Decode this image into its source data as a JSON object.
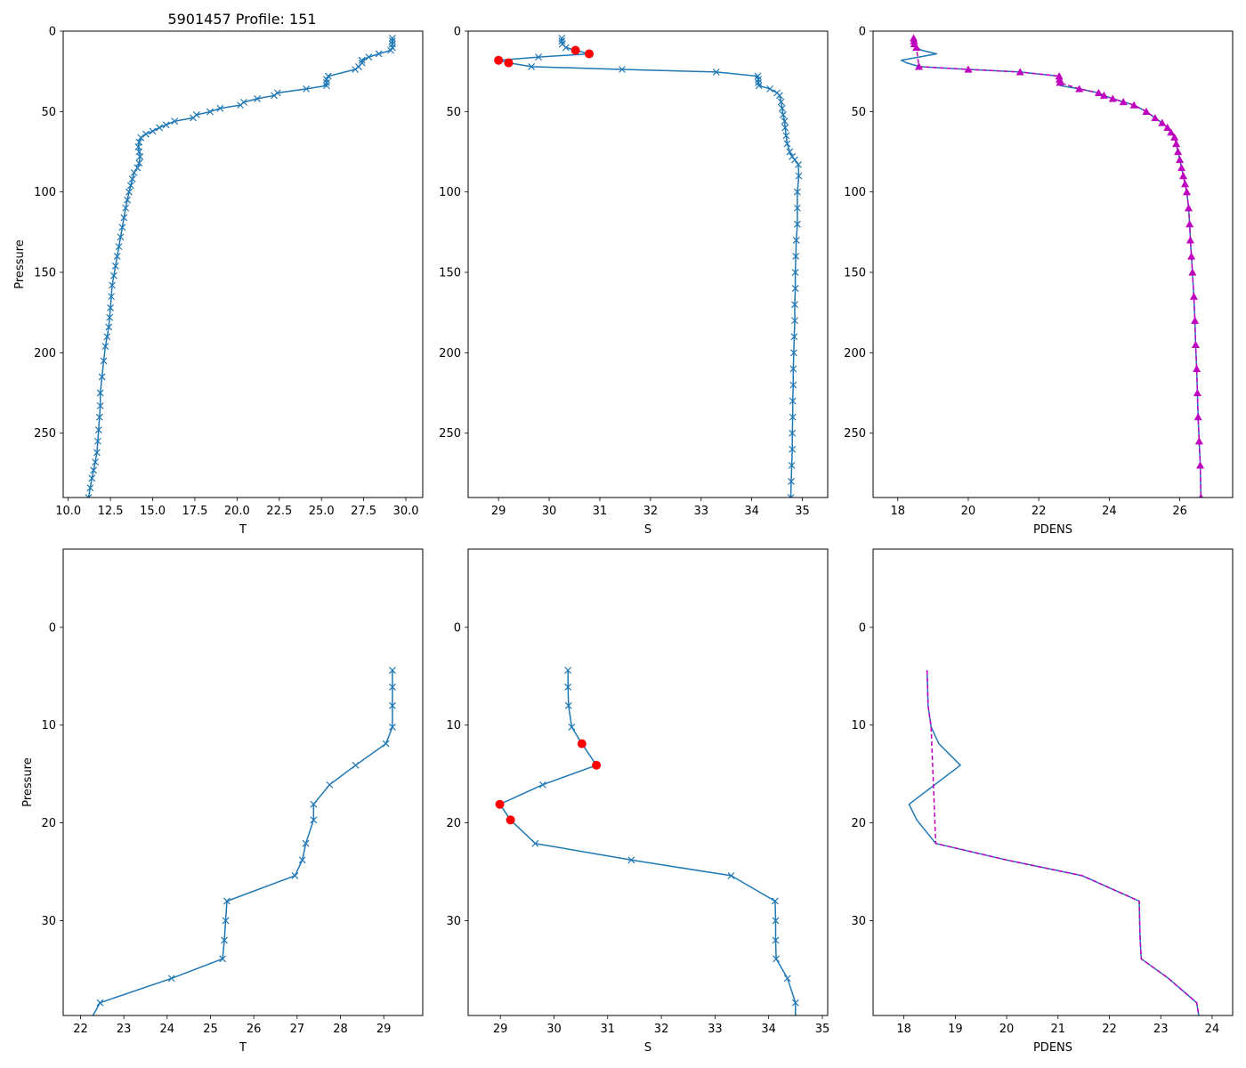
{
  "figure_title": "5901457 Profile: 151",
  "colors": {
    "line": "#1f77b4",
    "flag": "#ff0000",
    "dens": "#bf00bf",
    "axis": "#000000"
  },
  "chart_data": [
    {
      "id": "top-temperature",
      "type": "line",
      "xlabel": "T",
      "ylabel": "Pressure",
      "xlim": [
        9.7,
        31.0
      ],
      "ylim": [
        290,
        0
      ],
      "y_inverted": true,
      "xticks": [
        10.0,
        12.5,
        15.0,
        17.5,
        20.0,
        22.5,
        25.0,
        27.5,
        30.0
      ],
      "xtick_labels": [
        "10.0",
        "12.5",
        "15.0",
        "17.5",
        "20.0",
        "22.5",
        "25.0",
        "27.5",
        "30.0"
      ],
      "yticks": [
        0,
        50,
        100,
        150,
        200,
        250
      ],
      "ytick_labels": [
        "0",
        "50",
        "100",
        "150",
        "200",
        "250"
      ],
      "marker": "x",
      "series": [
        {
          "name": "T",
          "x": [
            29.2,
            29.2,
            29.2,
            29.2,
            29.1,
            28.4,
            27.8,
            27.4,
            27.4,
            27.2,
            27.0,
            25.4,
            25.3,
            25.3,
            25.3,
            24.1,
            22.4,
            22.2,
            21.2,
            20.4,
            20.2,
            19.0,
            18.4,
            17.6,
            17.4,
            16.3,
            15.8,
            15.4,
            15.0,
            14.6,
            14.3,
            14.2,
            14.15,
            14.2,
            14.25,
            14.2,
            14.1,
            13.9,
            13.8,
            13.7,
            13.6,
            13.5,
            13.4,
            13.3,
            13.2,
            13.1,
            13.0,
            12.9,
            12.8,
            12.7,
            12.6,
            12.55,
            12.5,
            12.45,
            12.4,
            12.3,
            12.2,
            12.1,
            12.0,
            11.9,
            11.9,
            11.85,
            11.8,
            11.75,
            11.7,
            11.6,
            11.5,
            11.4,
            11.3,
            11.2
          ],
          "y": [
            4.4,
            6.1,
            8.0,
            10.2,
            11.9,
            14.1,
            16.1,
            18.1,
            19.7,
            22.1,
            23.8,
            28.0,
            30.0,
            32.0,
            33.9,
            35.9,
            38.4,
            40.0,
            42.0,
            44.2,
            46.0,
            48.0,
            50.1,
            52.0,
            53.9,
            56.0,
            58.3,
            60.0,
            62.2,
            64.0,
            66.2,
            69.0,
            72.0,
            75.0,
            78.0,
            82.0,
            85.0,
            88.0,
            92.0,
            96.0,
            100.0,
            105.0,
            110.0,
            116.0,
            122.0,
            128.0,
            134.0,
            140.0,
            146.0,
            152.0,
            158.0,
            165.0,
            172.0,
            178.0,
            184.0,
            190.0,
            196.0,
            205.0,
            215.0,
            225.0,
            233.0,
            240.0,
            248.0,
            255.0,
            262.0,
            268.0,
            273.0,
            278.0,
            284.0,
            290.0
          ]
        }
      ]
    },
    {
      "id": "top-salinity",
      "type": "line",
      "xlabel": "S",
      "ylabel": "",
      "xlim": [
        28.4,
        35.5
      ],
      "ylim": [
        290,
        0
      ],
      "y_inverted": true,
      "xticks": [
        29,
        30,
        31,
        32,
        33,
        34,
        35
      ],
      "xtick_labels": [
        "29",
        "30",
        "31",
        "32",
        "33",
        "34",
        "35"
      ],
      "yticks": [
        0,
        50,
        100,
        150,
        200,
        250
      ],
      "ytick_labels": [
        "0",
        "50",
        "100",
        "150",
        "200",
        "250"
      ],
      "marker": "x",
      "series": [
        {
          "name": "S",
          "x": [
            30.25,
            30.25,
            30.26,
            30.33,
            30.52,
            30.79,
            29.79,
            29.0,
            29.2,
            29.65,
            31.44,
            33.3,
            34.12,
            34.13,
            34.13,
            34.14,
            34.36,
            34.5,
            34.55,
            34.58,
            34.6,
            34.62,
            34.65,
            34.66,
            34.68,
            34.7,
            34.75,
            34.8,
            34.85,
            34.92,
            34.93,
            34.9,
            34.9,
            34.9,
            34.88,
            34.87,
            34.86,
            34.86,
            34.85,
            34.85,
            34.84,
            34.83,
            34.82,
            34.82,
            34.81,
            34.81,
            34.8,
            34.8,
            34.79,
            34.78,
            34.77
          ],
          "y": [
            4.4,
            6.1,
            8.0,
            10.2,
            11.9,
            14.1,
            16.1,
            18.1,
            19.7,
            22.1,
            23.8,
            25.4,
            28.0,
            30.0,
            32.0,
            33.9,
            35.9,
            38.4,
            40.0,
            44.0,
            48.0,
            52.0,
            56.0,
            60.0,
            65.0,
            70.0,
            75.0,
            78.0,
            80.0,
            83.0,
            90.0,
            100.0,
            110.0,
            120.0,
            130.0,
            140.0,
            150.0,
            160.0,
            170.0,
            180.0,
            190.0,
            200.0,
            210.0,
            220.0,
            230.0,
            240.0,
            250.0,
            260.0,
            270.0,
            280.0,
            290.0
          ]
        }
      ],
      "flagged": {
        "x": [
          30.52,
          30.79,
          29.0,
          29.2
        ],
        "y": [
          11.9,
          14.1,
          18.1,
          19.7
        ]
      }
    },
    {
      "id": "top-density",
      "type": "line",
      "xlabel": "PDENS",
      "ylabel": "",
      "xlim": [
        17.3,
        27.5
      ],
      "ylim": [
        290,
        0
      ],
      "y_inverted": true,
      "xticks": [
        18,
        20,
        22,
        24,
        26
      ],
      "xtick_labels": [
        "18",
        "20",
        "22",
        "24",
        "26"
      ],
      "yticks": [
        0,
        50,
        100,
        150,
        200,
        250
      ],
      "ytick_labels": [
        "0",
        "50",
        "100",
        "150",
        "200",
        "250"
      ],
      "series": [
        {
          "name": "PDENS",
          "x": [
            18.45,
            18.46,
            18.47,
            18.53,
            18.68,
            19.1,
            18.6,
            18.1,
            18.25,
            18.62,
            20.0,
            21.47,
            22.58,
            22.59,
            22.6,
            22.62,
            23.15,
            23.7,
            23.85,
            24.1,
            24.4,
            24.7,
            25.05,
            25.3,
            25.5,
            25.65,
            25.75,
            25.85,
            25.9,
            25.95,
            26.0,
            26.05,
            26.1,
            26.15,
            26.2,
            26.25,
            26.28,
            26.3,
            26.33,
            26.36,
            26.4,
            26.43,
            26.45,
            26.48,
            26.5,
            26.52,
            26.55,
            26.58,
            26.6
          ],
          "y": [
            4.4,
            6.1,
            8.0,
            10.2,
            11.9,
            14.1,
            16.1,
            18.1,
            19.7,
            22.1,
            23.8,
            25.4,
            28.0,
            30.0,
            32.0,
            33.9,
            35.9,
            38.4,
            40.0,
            42.0,
            44.0,
            46.0,
            50.0,
            54.0,
            57.0,
            60.0,
            63.0,
            66.0,
            70.0,
            75.0,
            80.0,
            85.0,
            90.0,
            95.0,
            100.0,
            110.0,
            120.0,
            130.0,
            140.0,
            150.0,
            165.0,
            180.0,
            195.0,
            210.0,
            225.0,
            240.0,
            255.0,
            270.0,
            290.0
          ]
        }
      ],
      "dashed_overlay": true,
      "markers_triangle": {
        "x": [
          18.45,
          18.46,
          18.47,
          18.53,
          18.6,
          20.0,
          21.47,
          22.58,
          22.59,
          22.6,
          23.15,
          23.7,
          23.85,
          24.1,
          24.4,
          24.7,
          25.05,
          25.3,
          25.5,
          25.65,
          25.75,
          25.85,
          25.9,
          25.95,
          26.0,
          26.05,
          26.1,
          26.15,
          26.2,
          26.25,
          26.28,
          26.3,
          26.33,
          26.36,
          26.4,
          26.43,
          26.45,
          26.48,
          26.5,
          26.52,
          26.55,
          26.58,
          26.6
        ],
        "y": [
          4.4,
          6.1,
          8.0,
          10.2,
          22.1,
          23.8,
          25.4,
          28.0,
          30.0,
          32.0,
          35.9,
          38.4,
          40.0,
          42.0,
          44.0,
          46.0,
          50.0,
          54.0,
          57.0,
          60.0,
          63.0,
          66.0,
          70.0,
          75.0,
          80.0,
          85.0,
          90.0,
          95.0,
          100.0,
          110.0,
          120.0,
          130.0,
          140.0,
          150.0,
          165.0,
          180.0,
          195.0,
          210.0,
          225.0,
          240.0,
          255.0,
          270.0,
          290.0
        ]
      }
    },
    {
      "id": "bottom-temperature",
      "type": "line",
      "xlabel": "T",
      "ylabel": "Pressure",
      "xlim": [
        21.6,
        29.9
      ],
      "ylim": [
        39.7,
        -8
      ],
      "y_inverted": true,
      "xticks": [
        22,
        23,
        24,
        25,
        26,
        27,
        28,
        29
      ],
      "xtick_labels": [
        "22",
        "23",
        "24",
        "25",
        "26",
        "27",
        "28",
        "29"
      ],
      "yticks": [
        0,
        10,
        20,
        30
      ],
      "ytick_labels": [
        "0",
        "10",
        "20",
        "30"
      ],
      "marker": "x",
      "series": [
        {
          "name": "T",
          "x": [
            29.2,
            29.2,
            29.2,
            29.2,
            29.05,
            28.35,
            27.75,
            27.38,
            27.38,
            27.2,
            27.12,
            26.95,
            25.38,
            25.35,
            25.32,
            25.28,
            24.1,
            22.45,
            22.25
          ],
          "y": [
            4.4,
            6.1,
            8.0,
            10.2,
            11.9,
            14.1,
            16.1,
            18.1,
            19.7,
            22.1,
            23.8,
            25.4,
            28.0,
            30.0,
            32.0,
            33.9,
            35.9,
            38.4,
            40.0
          ]
        }
      ]
    },
    {
      "id": "bottom-salinity",
      "type": "line",
      "xlabel": "S",
      "ylabel": "",
      "xlim": [
        28.4,
        35.1
      ],
      "ylim": [
        39.7,
        -8
      ],
      "y_inverted": true,
      "xticks": [
        29,
        30,
        31,
        32,
        33,
        34,
        35
      ],
      "xtick_labels": [
        "29",
        "30",
        "31",
        "32",
        "33",
        "34",
        "35"
      ],
      "yticks": [
        0,
        10,
        20,
        30
      ],
      "ytick_labels": [
        "0",
        "10",
        "20",
        "30"
      ],
      "marker": "x",
      "series": [
        {
          "name": "S",
          "x": [
            30.26,
            30.26,
            30.27,
            30.33,
            30.52,
            30.79,
            29.79,
            28.99,
            29.19,
            29.65,
            31.44,
            33.3,
            34.12,
            34.13,
            34.13,
            34.14,
            34.35,
            34.5,
            34.5
          ],
          "y": [
            4.4,
            6.1,
            8.0,
            10.2,
            11.9,
            14.1,
            16.1,
            18.1,
            19.7,
            22.1,
            23.8,
            25.4,
            28.0,
            30.0,
            32.0,
            33.9,
            35.9,
            38.4,
            40.0
          ]
        }
      ],
      "flagged": {
        "x": [
          30.52,
          30.79,
          28.99,
          29.19
        ],
        "y": [
          11.9,
          14.1,
          18.1,
          19.7
        ]
      }
    },
    {
      "id": "bottom-density",
      "type": "line",
      "xlabel": "PDENS",
      "ylabel": "",
      "xlim": [
        17.4,
        24.4
      ],
      "ylim": [
        39.7,
        -8
      ],
      "y_inverted": true,
      "xticks": [
        18,
        19,
        20,
        21,
        22,
        23,
        24
      ],
      "xtick_labels": [
        "18",
        "19",
        "20",
        "21",
        "22",
        "23",
        "24"
      ],
      "yticks": [
        0,
        10,
        20,
        30
      ],
      "ytick_labels": [
        "0",
        "10",
        "20",
        "30"
      ],
      "series": [
        {
          "name": "PDENS",
          "x": [
            18.45,
            18.46,
            18.47,
            18.53,
            18.68,
            19.1,
            18.6,
            18.1,
            18.25,
            18.62,
            20.0,
            21.47,
            22.58,
            22.59,
            22.6,
            22.62,
            23.15,
            23.7,
            23.75
          ],
          "y": [
            4.4,
            6.1,
            8.0,
            10.2,
            11.9,
            14.1,
            16.1,
            18.1,
            19.7,
            22.1,
            23.8,
            25.4,
            28.0,
            30.0,
            32.0,
            33.9,
            35.9,
            38.4,
            40.0
          ]
        }
      ],
      "dashed_overlay": true,
      "dashed_overlay_x": [
        18.45,
        18.46,
        18.47,
        18.53,
        18.62,
        20.0,
        21.47,
        22.58,
        22.59,
        22.6,
        22.62,
        23.15,
        23.7,
        23.75
      ],
      "dashed_overlay_y": [
        4.4,
        6.1,
        8.0,
        10.2,
        22.1,
        23.8,
        25.4,
        28.0,
        30.0,
        32.0,
        33.9,
        35.9,
        38.4,
        40.0
      ]
    }
  ]
}
